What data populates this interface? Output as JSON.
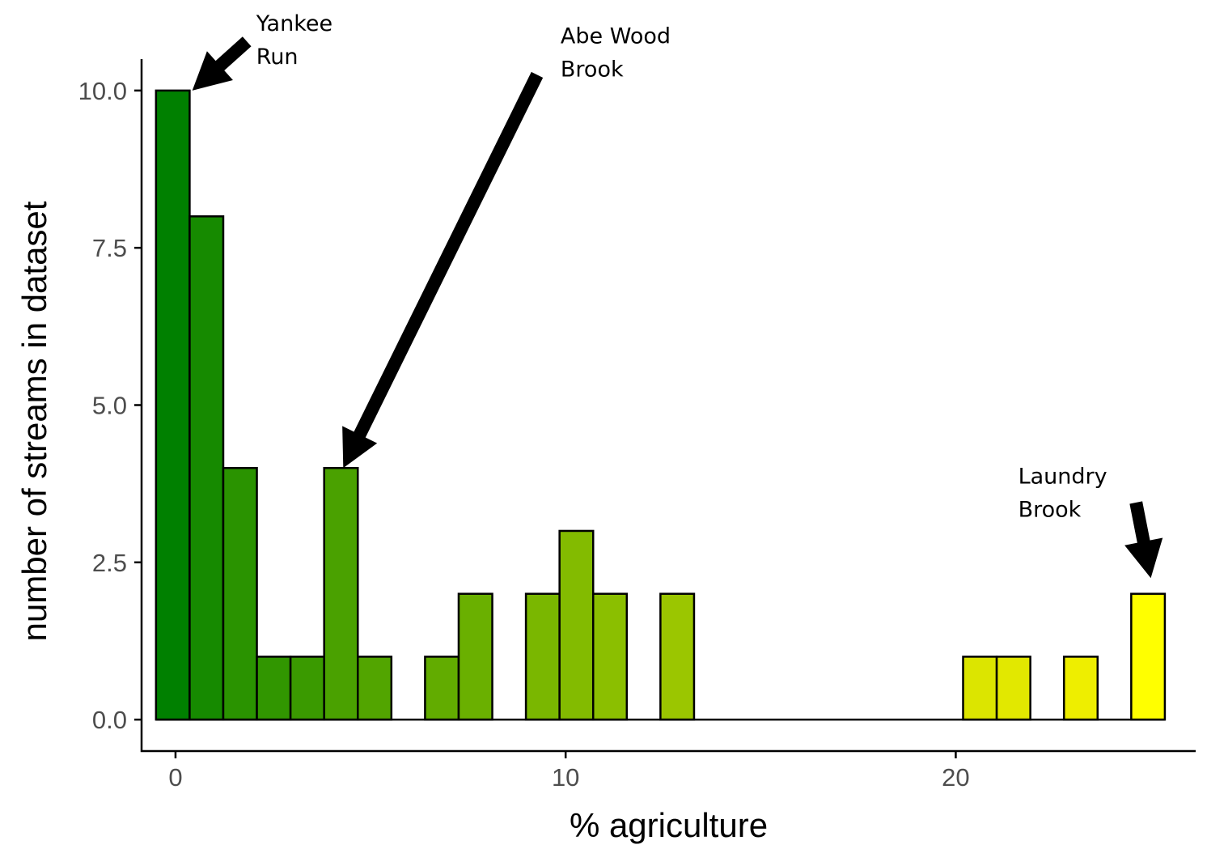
{
  "chart_data": {
    "type": "bar",
    "xlabel": "% agriculture",
    "ylabel": "number of streams in dataset",
    "xlim": [
      -0.87,
      26.15
    ],
    "ylim": [
      -0.5,
      10.5
    ],
    "xticks": [
      0,
      10,
      20
    ],
    "xtick_labels": [
      "0",
      "10",
      "20"
    ],
    "yticks": [
      0,
      2.5,
      5,
      7.5,
      10
    ],
    "ytick_labels": [
      "0.0",
      "2.5",
      "5.0",
      "7.5",
      "10.0"
    ],
    "bin_width": 0.862,
    "bin_start": -0.5,
    "values": [
      10,
      8,
      4,
      1,
      1,
      4,
      1,
      0,
      1,
      2,
      0,
      2,
      3,
      2,
      0,
      2,
      0,
      0,
      0,
      0,
      0,
      0,
      0,
      0,
      1,
      1,
      0,
      1,
      0,
      2
    ],
    "colors": [
      "#008000",
      "#168a00",
      "#2a9300",
      "#319600",
      "#3a9a00",
      "#4aa100",
      "#52a500",
      "#5aa800",
      "#62ac00",
      "#6ab000",
      "#72b300",
      "#7ab700",
      "#83bb00",
      "#8bbf00",
      "#93c200",
      "#9bc600",
      "#a3ca00",
      "#abcd00",
      "#b3d100",
      "#bbd500",
      "#c3d800",
      "#cbdc00",
      "#d3e000",
      "#d9e300",
      "#dce500",
      "#e2e800",
      "#e8eb00",
      "#eeee00",
      "#f4f200",
      "#ffff00"
    ],
    "grid": false,
    "legend": "none",
    "annotations": [
      {
        "lines": [
          "Yankee",
          "Run"
        ],
        "target": [
          0.43,
          10
        ],
        "tail": [
          1.83,
          10.78
        ],
        "text_x": 2.07,
        "text_y": 10.95
      },
      {
        "lines": [
          "Abe Wood",
          "Brook"
        ],
        "target": [
          4.3,
          4
        ],
        "tail": [
          9.27,
          10.25
        ],
        "text_x": 9.87,
        "text_y": 10.75
      },
      {
        "lines": [
          "Laundry",
          "Brook"
        ],
        "target": [
          25.0,
          2.25
        ],
        "tail": [
          24.62,
          3.45
        ],
        "text_x": 21.6,
        "text_y": 3.75
      }
    ]
  }
}
